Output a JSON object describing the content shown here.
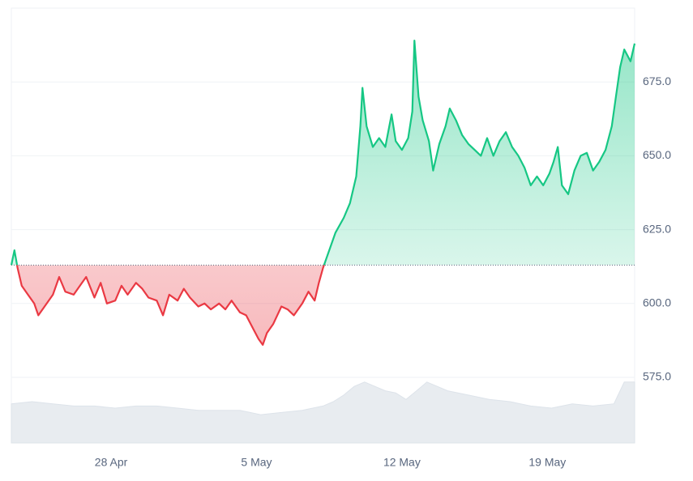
{
  "chart_data": {
    "type": "line",
    "x": [
      0,
      0.15,
      0.3,
      0.5,
      0.8,
      1.1,
      1.3,
      1.6,
      2,
      2.3,
      2.6,
      3,
      3.3,
      3.6,
      4,
      4.3,
      4.6,
      5,
      5.3,
      5.6,
      6,
      6.3,
      6.6,
      7,
      7.3,
      7.6,
      8,
      8.3,
      8.6,
      9,
      9.3,
      9.6,
      10,
      10.3,
      10.6,
      11,
      11.3,
      11.6,
      11.9,
      12.1,
      12.3,
      12.6,
      13,
      13.3,
      13.6,
      14,
      14.3,
      14.6,
      14.8,
      15,
      15.3,
      15.6,
      16,
      16.3,
      16.6,
      16.8,
      16.9,
      17.1,
      17.4,
      17.7,
      18,
      18.3,
      18.5,
      18.8,
      19.1,
      19.3,
      19.4,
      19.6,
      19.8,
      20.1,
      20.3,
      20.6,
      20.9,
      21.1,
      21.4,
      21.7,
      22,
      22.3,
      22.6,
      22.9,
      23.2,
      23.5,
      23.8,
      24.1,
      24.4,
      24.7,
      25,
      25.3,
      25.6,
      25.9,
      26.1,
      26.3,
      26.5,
      26.8,
      27.1,
      27.4,
      27.7,
      28,
      28.3,
      28.6,
      28.9,
      29.1,
      29.3,
      29.5,
      29.8,
      30
    ],
    "series": [
      {
        "color": "#16c784",
        "below_color": "#ea3943",
        "values": [
          613,
          618,
          612,
          606,
          603,
          600,
          596,
          599,
          603,
          609,
          604,
          603,
          606,
          609,
          602,
          607,
          600,
          601,
          606,
          603,
          607,
          605,
          602,
          601,
          596,
          603,
          601,
          605,
          602,
          599,
          600,
          598,
          600,
          598,
          601,
          597,
          596,
          592,
          588,
          586,
          590,
          593,
          599,
          598,
          596,
          600,
          604,
          601,
          607,
          612,
          618,
          624,
          629,
          634,
          643,
          660,
          673,
          660,
          653,
          656,
          653,
          664,
          655,
          652,
          656,
          665,
          689,
          670,
          662,
          655,
          645,
          654,
          660,
          666,
          662,
          657,
          654,
          652,
          650,
          656,
          650,
          655,
          658,
          653,
          650,
          646,
          640,
          643,
          640,
          644,
          648,
          653,
          640,
          637,
          645,
          650,
          651,
          645,
          648,
          652,
          660,
          670,
          680,
          686,
          682,
          688
        ]
      },
      {
        "color": "#e8ecf0",
        "axis": "y2",
        "x": [
          0,
          1,
          2,
          3,
          4,
          5,
          6,
          7,
          8,
          9,
          10,
          11,
          12,
          13,
          14,
          15,
          15.5,
          16,
          16.5,
          17,
          17.5,
          18,
          18.5,
          19,
          19.5,
          20,
          20.5,
          21,
          22,
          23,
          24,
          25,
          26,
          27,
          28,
          29,
          29.5,
          30
        ],
        "values": [
          9,
          9.5,
          9,
          8.5,
          8.5,
          8,
          8.5,
          8.5,
          8,
          7.5,
          7.5,
          7.5,
          6.5,
          7,
          7.5,
          8.5,
          9.5,
          11,
          13,
          14,
          13,
          12,
          11.5,
          10,
          12,
          14,
          13,
          12,
          11,
          10,
          9.5,
          8.5,
          8,
          9,
          8.5,
          9,
          14,
          14
        ]
      }
    ],
    "baseline": 613,
    "xlim": [
      0,
      30
    ],
    "xticks": [
      {
        "value": 4.8,
        "label": "28 Apr"
      },
      {
        "value": 11.8,
        "label": "5 May"
      },
      {
        "value": 18.8,
        "label": "12 May"
      },
      {
        "value": 25.8,
        "label": "19 May"
      }
    ],
    "ylim": [
      552.8,
      700
    ],
    "yticks": [
      {
        "value": 575,
        "label": "575.0"
      },
      {
        "value": 600,
        "label": "600.0"
      },
      {
        "value": 625,
        "label": "625.0"
      },
      {
        "value": 650,
        "label": "650.0"
      },
      {
        "value": 675,
        "label": "675.0"
      }
    ],
    "y2lim": [
      0,
      100
    ],
    "grid": true
  }
}
